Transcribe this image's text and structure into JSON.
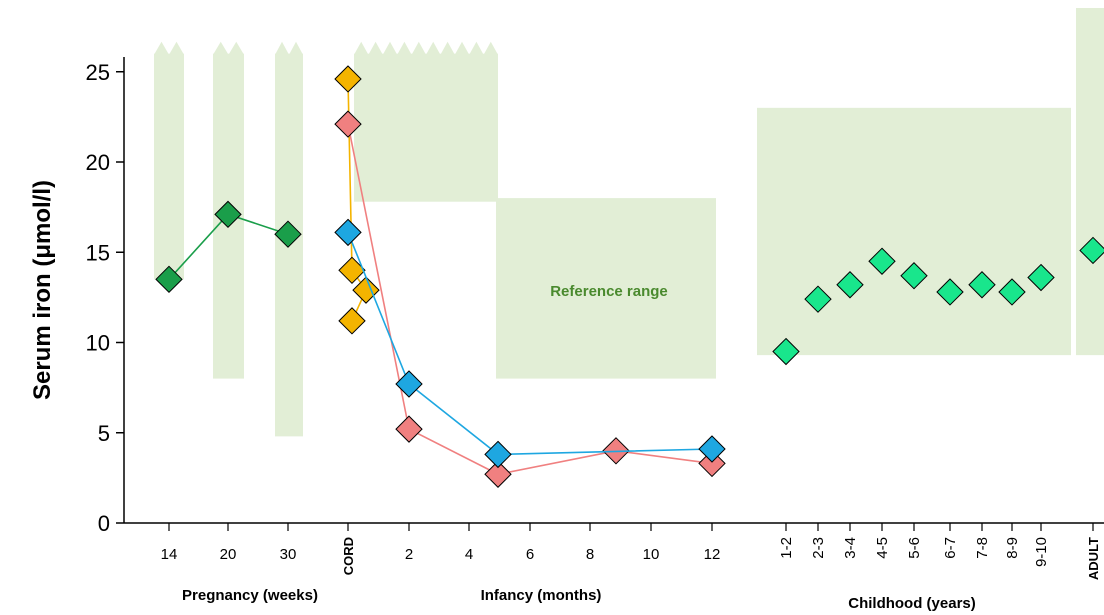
{
  "chart_data": {
    "type": "scatter",
    "ylabel": "Serum iron (μmol/l)",
    "ylim": [
      0,
      25
    ],
    "y_ticks": [
      0,
      5,
      10,
      15,
      20,
      25
    ],
    "x_group_labels": [
      {
        "key": "pregnancy",
        "label": "Pregnancy (weeks)"
      },
      {
        "key": "infancy",
        "label": "Infancy (months)"
      },
      {
        "key": "childhood",
        "label": "Childhood (years)"
      }
    ],
    "x_ticks": [
      {
        "key": "w14",
        "label": "14",
        "group": "pregnancy"
      },
      {
        "key": "w20",
        "label": "20",
        "group": "pregnancy"
      },
      {
        "key": "w30",
        "label": "30",
        "group": "pregnancy"
      },
      {
        "key": "cord",
        "label": "CORD",
        "group": "cord",
        "vertical": true
      },
      {
        "key": "m2",
        "label": "2",
        "group": "infancy"
      },
      {
        "key": "m4",
        "label": "4",
        "group": "infancy"
      },
      {
        "key": "m6",
        "label": "6",
        "group": "infancy"
      },
      {
        "key": "m8",
        "label": "8",
        "group": "infancy"
      },
      {
        "key": "m10",
        "label": "10",
        "group": "infancy"
      },
      {
        "key": "m12",
        "label": "12",
        "group": "infancy"
      },
      {
        "key": "y1-2",
        "label": "1-2",
        "group": "childhood",
        "vertical": true
      },
      {
        "key": "y2-3",
        "label": "2-3",
        "group": "childhood",
        "vertical": true
      },
      {
        "key": "y3-4",
        "label": "3-4",
        "group": "childhood",
        "vertical": true
      },
      {
        "key": "y4-5",
        "label": "4-5",
        "group": "childhood",
        "vertical": true
      },
      {
        "key": "y5-6",
        "label": "5-6",
        "group": "childhood",
        "vertical": true
      },
      {
        "key": "y6-7",
        "label": "6-7",
        "group": "childhood",
        "vertical": true
      },
      {
        "key": "y7-8",
        "label": "7-8",
        "group": "childhood",
        "vertical": true
      },
      {
        "key": "y8-9",
        "label": "8-9",
        "group": "childhood",
        "vertical": true
      },
      {
        "key": "y9-10",
        "label": "9-10",
        "group": "childhood",
        "vertical": true
      },
      {
        "key": "adult",
        "label": "ADULT",
        "group": "adult",
        "vertical": true
      }
    ],
    "annotation": "Reference range",
    "reference_ranges": [
      {
        "x_from": "w14",
        "x_to": "w14",
        "y_low": 13.5,
        "y_high": 26,
        "open_top": true
      },
      {
        "x_from": "w20",
        "x_to": "w20",
        "y_low": 8,
        "y_high": 26,
        "open_top": true
      },
      {
        "x_from": "w30",
        "x_to": "w30",
        "y_low": 4.8,
        "y_high": 26,
        "open_top": true
      },
      {
        "x_from": "cord",
        "x_to": "m5",
        "y_low": 17.8,
        "y_high": 26,
        "open_top": true
      },
      {
        "x_from": "m5",
        "x_to": "m12",
        "y_low": 8,
        "y_high": 18
      },
      {
        "x_from": "y1-2",
        "x_to": "y9-10",
        "y_low": 9.3,
        "y_high": 23
      },
      {
        "x_from": "adult",
        "x_to": "adult",
        "y_low": 9.3,
        "y_high": 29
      }
    ],
    "series": [
      {
        "color": "#1a9e4a",
        "connected": true,
        "points": [
          {
            "x": "w14",
            "y": 13.5
          },
          {
            "x": "w20",
            "y": 17.1
          },
          {
            "x": "w30",
            "y": 16.0
          }
        ]
      },
      {
        "color": "#f4b400",
        "connected": true,
        "points": [
          {
            "x": "cord",
            "y": 24.6
          },
          {
            "x": "cord",
            "y": 14.0
          },
          {
            "x": "cord",
            "y": 12.9
          },
          {
            "x": "cord",
            "y": 11.2
          }
        ]
      },
      {
        "color": "#f08080",
        "connected": true,
        "points": [
          {
            "x": "cord",
            "y": 22.1
          },
          {
            "x": "m2",
            "y": 5.2
          },
          {
            "x": "m5",
            "y": 2.7
          },
          {
            "x": "m9",
            "y": 4.0
          },
          {
            "x": "m12",
            "y": 3.3
          }
        ]
      },
      {
        "color": "#1ea7e1",
        "connected": true,
        "points": [
          {
            "x": "cord",
            "y": 16.1
          },
          {
            "x": "m2",
            "y": 7.7
          },
          {
            "x": "m5",
            "y": 3.8
          },
          {
            "x": "m12",
            "y": 4.1
          }
        ]
      },
      {
        "color": "#19e68c",
        "connected": false,
        "points": [
          {
            "x": "y1-2",
            "y": 9.5
          },
          {
            "x": "y2-3",
            "y": 12.4
          },
          {
            "x": "y3-4",
            "y": 13.2
          },
          {
            "x": "y4-5",
            "y": 14.5
          },
          {
            "x": "y5-6",
            "y": 13.7
          },
          {
            "x": "y6-7",
            "y": 12.8
          },
          {
            "x": "y7-8",
            "y": 13.2
          },
          {
            "x": "y8-9",
            "y": 12.8
          },
          {
            "x": "y9-10",
            "y": 13.6
          },
          {
            "x": "adult",
            "y": 15.1
          }
        ]
      }
    ],
    "colors": {
      "reference": "#e2eed6",
      "annotation": "#4a8a2e",
      "axis": "#000000"
    }
  }
}
